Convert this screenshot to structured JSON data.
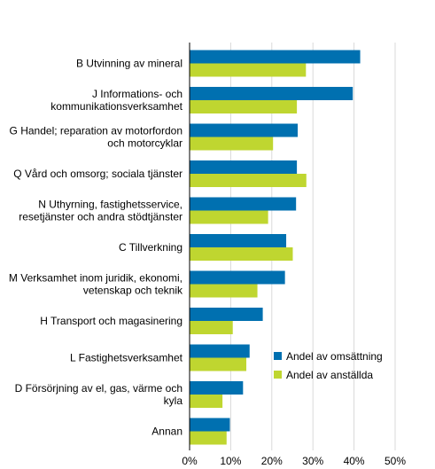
{
  "chart_data": {
    "type": "bar",
    "orientation": "horizontal",
    "categories": [
      [
        "B Utvinning av mineral"
      ],
      [
        "J Informations- och",
        "kommunikationsverksamhet"
      ],
      [
        "G Handel; reparation av motorfordon",
        "och motorcyklar"
      ],
      [
        "Q Vård och omsorg; sociala tjänster"
      ],
      [
        "N Uthyrning, fastighetsservice,",
        "resetjänster och andra stödtjänster"
      ],
      [
        "C Tillverkning"
      ],
      [
        "M Verksamhet inom juridik, ekonomi,",
        "vetenskap och teknik"
      ],
      [
        "H Transport och magasinering"
      ],
      [
        "L Fastighetsverksamhet"
      ],
      [
        "D Försörjning av el, gas, värme och",
        "kyla"
      ],
      [
        "Annan"
      ]
    ],
    "series": [
      {
        "name": "Andel av omsättning",
        "color": "#0070b0",
        "values": [
          41.5,
          39.7,
          26.3,
          26.1,
          25.9,
          23.5,
          23.2,
          17.8,
          14.6,
          13.0,
          9.8
        ]
      },
      {
        "name": "Andel av anställda",
        "color": "#bfd630",
        "values": [
          28.3,
          26.1,
          20.3,
          28.4,
          19.1,
          25.1,
          16.5,
          10.5,
          13.8,
          8.0,
          9.0
        ]
      }
    ],
    "xlim": [
      0,
      50
    ],
    "xticks": [
      0,
      10,
      20,
      30,
      40,
      50
    ],
    "tick_suffix": "%",
    "grid": true,
    "legend_position": "bottom-right"
  }
}
